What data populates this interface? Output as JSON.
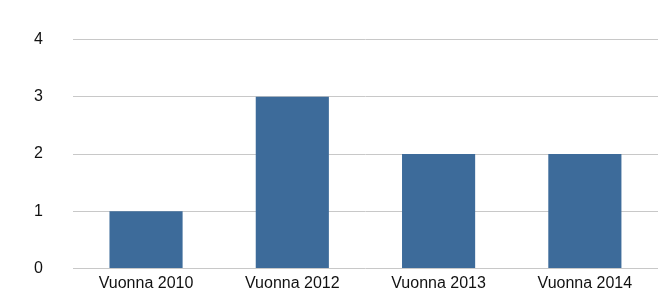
{
  "chart_data": {
    "type": "bar",
    "categories": [
      "Vuonna 2010",
      "Vuonna 2012",
      "Vuonna 2013",
      "Vuonna 2014"
    ],
    "values": [
      1,
      3,
      2,
      2
    ],
    "color": "#3d6b9a",
    "ylim": [
      0,
      4
    ],
    "yticks": [
      0,
      1,
      2,
      3,
      4
    ],
    "grid": true
  }
}
